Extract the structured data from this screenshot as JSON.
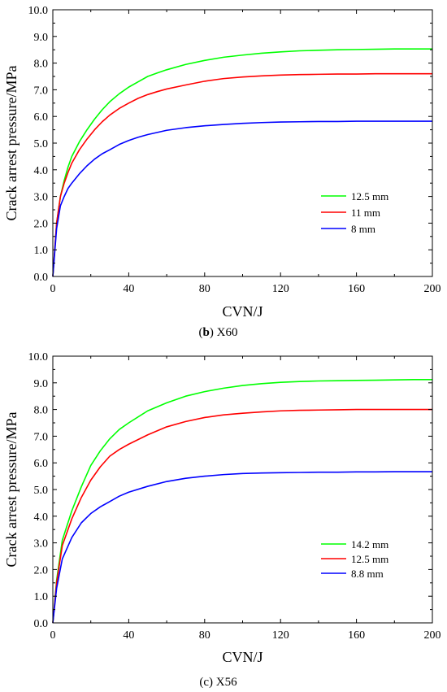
{
  "chart_data": [
    {
      "type": "line",
      "caption_letter": "b",
      "caption_text": " X60",
      "xlabel": "CVN/J",
      "ylabel": "Crack arrest pressure/MPa",
      "xlim": [
        0,
        200
      ],
      "ylim": [
        0,
        10
      ],
      "x_ticks": [
        "0",
        "40",
        "80",
        "120",
        "160",
        "200"
      ],
      "y_ticks": [
        "0.0",
        "1.0",
        "2.0",
        "3.0",
        "4.0",
        "5.0",
        "6.0",
        "7.0",
        "8.0",
        "9.0",
        "10.0"
      ],
      "legend_position": "lower-right",
      "series": [
        {
          "name": "12.5 mm",
          "color": "#00ff00",
          "x": [
            0,
            2,
            4,
            6,
            8,
            10,
            14,
            18,
            22,
            26,
            30,
            35,
            40,
            45,
            50,
            55,
            60,
            70,
            80,
            90,
            100,
            110,
            120,
            130,
            140,
            150,
            160,
            170,
            180,
            190,
            200
          ],
          "y": [
            0,
            2.0,
            3.0,
            3.6,
            4.1,
            4.5,
            5.05,
            5.5,
            5.9,
            6.25,
            6.55,
            6.85,
            7.1,
            7.3,
            7.5,
            7.63,
            7.75,
            7.95,
            8.1,
            8.22,
            8.3,
            8.37,
            8.42,
            8.46,
            8.48,
            8.5,
            8.51,
            8.52,
            8.53,
            8.53,
            8.53
          ]
        },
        {
          "name": "11 mm",
          "color": "#ff0000",
          "x": [
            0,
            2,
            4,
            6,
            8,
            10,
            14,
            18,
            22,
            26,
            30,
            35,
            40,
            45,
            50,
            55,
            60,
            70,
            80,
            90,
            100,
            110,
            120,
            130,
            140,
            150,
            160,
            170,
            180,
            190,
            200
          ],
          "y": [
            0,
            2.0,
            3.0,
            3.5,
            3.9,
            4.25,
            4.75,
            5.15,
            5.5,
            5.8,
            6.05,
            6.3,
            6.5,
            6.68,
            6.82,
            6.93,
            7.03,
            7.18,
            7.32,
            7.42,
            7.48,
            7.52,
            7.55,
            7.57,
            7.58,
            7.59,
            7.59,
            7.6,
            7.6,
            7.6,
            7.6
          ]
        },
        {
          "name": "8 mm",
          "color": "#0000ff",
          "x": [
            0,
            2,
            4,
            6,
            8,
            10,
            14,
            18,
            22,
            26,
            30,
            35,
            40,
            45,
            50,
            55,
            60,
            70,
            80,
            90,
            100,
            110,
            120,
            130,
            140,
            150,
            160,
            170,
            180,
            190,
            200
          ],
          "y": [
            0,
            1.8,
            2.65,
            3.0,
            3.3,
            3.5,
            3.85,
            4.15,
            4.4,
            4.6,
            4.75,
            4.95,
            5.1,
            5.22,
            5.32,
            5.4,
            5.48,
            5.58,
            5.65,
            5.7,
            5.74,
            5.77,
            5.79,
            5.8,
            5.81,
            5.81,
            5.82,
            5.82,
            5.82,
            5.82,
            5.82
          ]
        }
      ]
    },
    {
      "type": "line",
      "caption_letter": "",
      "caption_text": "(c) X56",
      "xlabel": "CVN/J",
      "ylabel": "Crack arrest pressure/MPa",
      "xlim": [
        0,
        200
      ],
      "ylim": [
        0,
        10
      ],
      "x_ticks": [
        "0",
        "40",
        "80",
        "120",
        "160",
        "200"
      ],
      "y_ticks": [
        "0.0",
        "1.0",
        "2.0",
        "3.0",
        "4.0",
        "5.0",
        "6.0",
        "7.0",
        "8.0",
        "9.0",
        "10.0"
      ],
      "legend_position": "lower-right",
      "series": [
        {
          "name": "14.2 mm",
          "color": "#00ff00",
          "x": [
            0,
            2,
            5,
            10,
            15,
            20,
            25,
            30,
            35,
            40,
            50,
            60,
            70,
            80,
            90,
            100,
            110,
            120,
            130,
            140,
            150,
            160,
            170,
            180,
            190,
            200
          ],
          "y": [
            0,
            1.6,
            3.1,
            4.2,
            5.1,
            5.9,
            6.45,
            6.9,
            7.25,
            7.5,
            7.95,
            8.25,
            8.5,
            8.67,
            8.8,
            8.9,
            8.97,
            9.02,
            9.05,
            9.07,
            9.08,
            9.09,
            9.1,
            9.11,
            9.12,
            9.12
          ]
        },
        {
          "name": "12.5 mm",
          "color": "#ff0000",
          "x": [
            0,
            2,
            5,
            10,
            15,
            20,
            25,
            30,
            35,
            40,
            50,
            60,
            70,
            80,
            90,
            100,
            110,
            120,
            130,
            140,
            150,
            160,
            170,
            180,
            190,
            200
          ],
          "y": [
            0,
            1.5,
            2.9,
            3.9,
            4.7,
            5.35,
            5.85,
            6.25,
            6.5,
            6.7,
            7.05,
            7.35,
            7.55,
            7.7,
            7.8,
            7.86,
            7.91,
            7.95,
            7.97,
            7.98,
            7.99,
            8.0,
            8.0,
            8.0,
            8.0,
            8.0
          ]
        },
        {
          "name": "8.8 mm",
          "color": "#0000ff",
          "x": [
            0,
            2,
            5,
            10,
            15,
            20,
            25,
            30,
            35,
            40,
            50,
            60,
            70,
            80,
            90,
            100,
            110,
            120,
            130,
            140,
            150,
            160,
            170,
            180,
            190,
            200
          ],
          "y": [
            0,
            1.3,
            2.4,
            3.2,
            3.75,
            4.1,
            4.35,
            4.55,
            4.75,
            4.9,
            5.12,
            5.3,
            5.42,
            5.5,
            5.56,
            5.6,
            5.62,
            5.63,
            5.64,
            5.65,
            5.65,
            5.66,
            5.66,
            5.67,
            5.67,
            5.67
          ]
        }
      ]
    }
  ]
}
